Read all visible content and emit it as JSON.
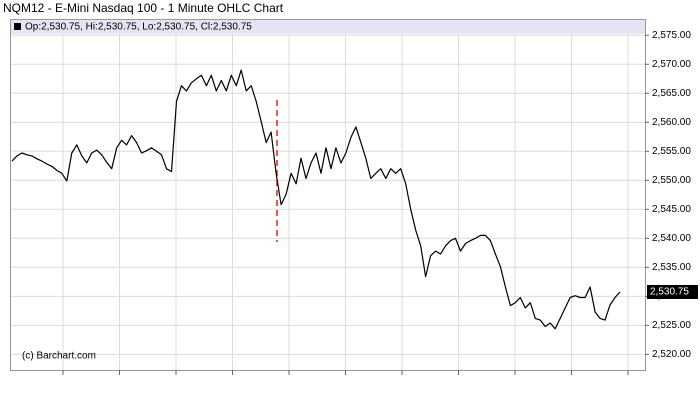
{
  "chart_data": {
    "type": "line",
    "title": "NQM12 - E-Mini Nasdaq 100 - 1 Minute OHLC Chart",
    "info": "Op:2,530.75, Hi:2,530.75, Lo:2,530.75, Cl:2,530.75",
    "credit": "(c) Barchart.com",
    "color": "#000000",
    "grid": true,
    "ylim": [
      2517.3,
      2577.8
    ],
    "yticks": [
      {
        "value": 2520,
        "label": "2,520.00"
      },
      {
        "value": 2525,
        "label": "2,525.00"
      },
      {
        "value": 2530,
        "label": "2,530.00"
      },
      {
        "value": 2535,
        "label": "2,535.00"
      },
      {
        "value": 2540,
        "label": "2,540.00"
      },
      {
        "value": 2545,
        "label": "2,545.00"
      },
      {
        "value": 2550,
        "label": "2,550.00"
      },
      {
        "value": 2555,
        "label": "2,555.00"
      },
      {
        "value": 2560,
        "label": "2,560.00"
      },
      {
        "value": 2565,
        "label": "2,565.00"
      },
      {
        "value": 2570,
        "label": "2,570.00"
      },
      {
        "value": 2575,
        "label": "2,575.00"
      }
    ],
    "last": {
      "value": 2530.75,
      "label": "2,530.75"
    },
    "values": [
      2553.3,
      2554.2,
      2554.7,
      2554.4,
      2554.2,
      2553.7,
      2553.3,
      2552.8,
      2552.4,
      2551.7,
      2551.2,
      2549.9,
      2554.7,
      2556.1,
      2554.2,
      2553,
      2554.7,
      2555.2,
      2554.4,
      2553.1,
      2552,
      2555.6,
      2556.9,
      2556.1,
      2557.7,
      2556.5,
      2554.7,
      2555.1,
      2555.6,
      2555,
      2554.4,
      2552,
      2551.5,
      2563.6,
      2566.3,
      2565.4,
      2566.8,
      2567.5,
      2568.1,
      2566.3,
      2568.1,
      2565.4,
      2567.2,
      2565.4,
      2568.1,
      2566.3,
      2569,
      2565.4,
      2566.3,
      2563.6,
      2560.1,
      2556.5,
      2558.3,
      2551.2,
      2545.8,
      2547.6,
      2551.2,
      2549.4,
      2553.8,
      2550.3,
      2553,
      2554.7,
      2551.2,
      2555.6,
      2552,
      2555.6,
      2553,
      2554.7,
      2557.4,
      2559.2,
      2556.5,
      2553.8,
      2550.3,
      2551.2,
      2552,
      2550.3,
      2552,
      2551.2,
      2552,
      2549.4,
      2545,
      2541.4,
      2538.7,
      2533.4,
      2537,
      2537.8,
      2537.3,
      2538.7,
      2539.6,
      2540,
      2537.8,
      2539.1,
      2539.6,
      2540,
      2540.5,
      2540.5,
      2539.6,
      2537.3,
      2535.1,
      2531.6,
      2528.4,
      2528.9,
      2529.8,
      2528,
      2528.9,
      2526.2,
      2525.9,
      2524.8,
      2525.4,
      2524.4,
      2526.2,
      2528,
      2529.8,
      2530.1,
      2529.8,
      2529.8,
      2531.6,
      2527.3,
      2526.2,
      2525.9,
      2528.5,
      2529.8,
      2530.75
    ]
  }
}
